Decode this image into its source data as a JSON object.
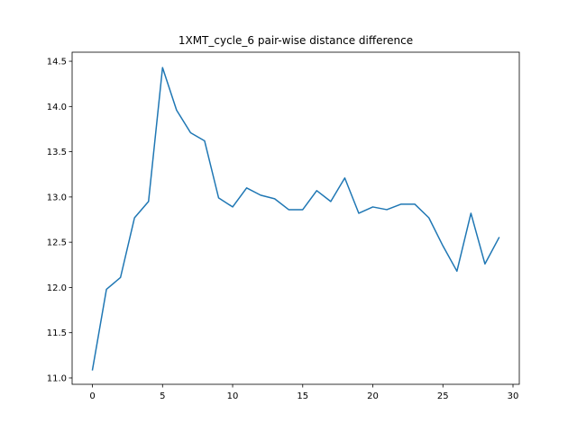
{
  "chart_data": {
    "type": "line",
    "title": "1XMT_cycle_6 pair-wise distance difference",
    "xlabel": "",
    "ylabel": "",
    "xlim": [
      -1.45,
      30.45
    ],
    "ylim": [
      10.93,
      14.6
    ],
    "xticks": [
      0,
      5,
      10,
      15,
      20,
      25,
      30
    ],
    "yticks": [
      11.0,
      11.5,
      12.0,
      12.5,
      13.0,
      13.5,
      14.0,
      14.5
    ],
    "ytick_labels": [
      "11.0",
      "11.5",
      "12.0",
      "12.5",
      "13.0",
      "13.5",
      "14.0",
      "14.5"
    ],
    "grid": false,
    "series": [
      {
        "color": "#1f77b4",
        "x": [
          0,
          1,
          2,
          3,
          4,
          5,
          6,
          7,
          8,
          9,
          10,
          11,
          12,
          13,
          14,
          15,
          16,
          17,
          18,
          19,
          20,
          21,
          22,
          23,
          24,
          25,
          26,
          27,
          28,
          29
        ],
        "y": [
          11.09,
          11.98,
          12.11,
          12.77,
          12.95,
          14.43,
          13.96,
          13.71,
          13.62,
          12.99,
          12.89,
          13.1,
          13.02,
          12.98,
          12.86,
          12.86,
          13.07,
          12.95,
          13.21,
          12.82,
          12.89,
          12.86,
          12.92,
          12.92,
          12.77,
          12.46,
          12.18,
          12.82,
          12.26,
          12.55
        ]
      }
    ]
  }
}
